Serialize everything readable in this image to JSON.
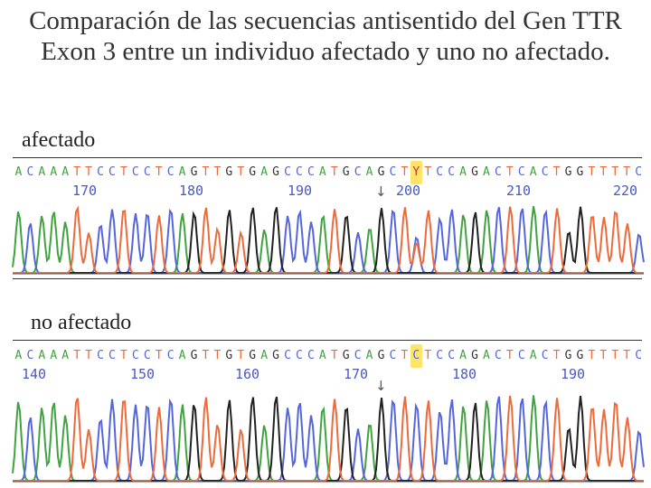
{
  "title": "Comparación de las secuencias antisentido del Gen TTR Exon 3 entre un individuo afectado y uno no afectado.",
  "panels": [
    {
      "label": "afectado",
      "sequence": "ACAAATTCCTCCTCAGTTGTGAGCCCATGCAGCTYTCCAGACTCACTGGTTTTCCTATA",
      "highlight_index": 34,
      "positions": [
        "170",
        "180",
        "190",
        "200",
        "210",
        "220"
      ]
    },
    {
      "label": "no afectado",
      "sequence": "ACAAATTCCTCCTCAGTTGTGAGCCCATGCAGCTCTCCAGACTCACTGGTTTTCCTATA",
      "highlight_index": 34,
      "positions": [
        "140",
        "150",
        "160",
        "170",
        "180",
        "190"
      ]
    }
  ],
  "colors": {
    "A": "#3fa33f",
    "C": "#5566dd",
    "G": "#222222",
    "T": "#ee6a3a",
    "Y": "#cc3333",
    "highlight": "#ffe46a"
  }
}
